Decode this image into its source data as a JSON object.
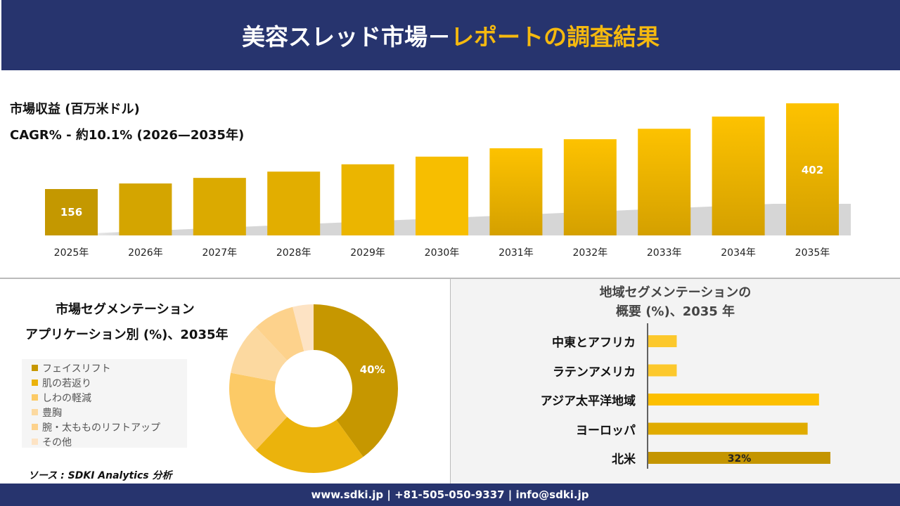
{
  "header": {
    "title_white": "美容スレッド市場－",
    "title_yellow": "レポートの調査結果"
  },
  "revenue": {
    "label": "市場収益 (百万米ドル)",
    "cagr": "CAGR% - 約10.1% (2026—2035年)"
  },
  "chart_data": [
    {
      "type": "bar",
      "title": "市場収益 (百万米ドル)",
      "categories": [
        "2025年",
        "2026年",
        "2027年",
        "2028年",
        "2029年",
        "2030年",
        "2031年",
        "2032年",
        "2033年",
        "2034年",
        "2035年"
      ],
      "values": [
        156,
        172,
        188,
        206,
        227,
        249,
        273,
        299,
        329,
        364,
        402
      ],
      "data_labels": {
        "0": "156",
        "10": "402"
      },
      "colors": [
        "#c49800",
        "#d4a500",
        "#dbaa00",
        "#e2ae00",
        "#ebb500",
        "#f7be00",
        "#f5bd00",
        "#f5bd00",
        "#f5bd00",
        "#f5bd00",
        "#f5bd00"
      ],
      "grid": false
    },
    {
      "type": "pie",
      "title": "市場セグメンテーション アプリケーション別 (%)、2035年",
      "categories": [
        "フェイスリフト",
        "肌の若返り",
        "しわの軽減",
        "豊胸",
        "腕・太もものリフトアップ",
        "その他"
      ],
      "values": [
        40,
        22,
        16,
        10,
        8,
        4
      ],
      "data_labels": {
        "0": "40%"
      },
      "colors": [
        "#c69700",
        "#ebb30c",
        "#fcca66",
        "#fcd9a0",
        "#fdd28c",
        "#fde3c4"
      ],
      "legend": "left"
    },
    {
      "type": "bar",
      "orientation": "horizontal",
      "title": "地域セグメンテーションの概要 (%)、2035 年",
      "categories": [
        "中東とアフリカ",
        "ラテンアメリカ",
        "アジア太平洋地域",
        "ヨーロッパ",
        "北米"
      ],
      "values": [
        5,
        5,
        30,
        28,
        32
      ],
      "data_labels": {
        "4": "32%"
      },
      "colors": [
        "#fcc82c",
        "#fcc82c",
        "#fcbf00",
        "#e0ab00",
        "#c49500"
      ]
    }
  ],
  "segment": {
    "title_line1": "市場セグメンテーション",
    "title_line2": "アプリケーション別 (%)、2035年"
  },
  "region": {
    "title_line1": "地域セグメンテーションの",
    "title_line2": "概要 (%)、2035 年"
  },
  "source": "ソース : SDKI Analytics 分析",
  "footer": "www.sdki.jp | +81-505-050-9337 | info@sdki.jp"
}
